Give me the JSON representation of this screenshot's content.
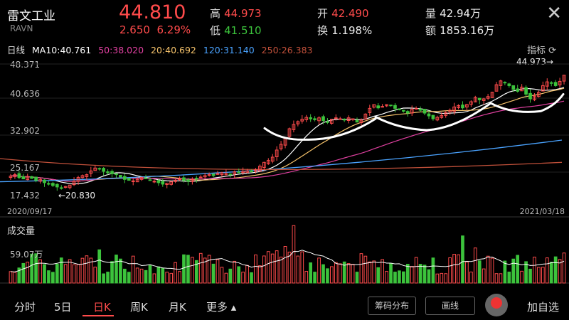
{
  "header": {
    "name": "雷文工业",
    "code": "RAVN",
    "price": "44.810",
    "change": "2.650",
    "change_pct": "6.29%",
    "high_label": "高",
    "high": "44.973",
    "low_label": "低",
    "low": "41.510",
    "open_label": "开",
    "open": "42.490",
    "turnover_label": "换",
    "turnover": "1.198%",
    "volume_label": "量",
    "volume": "42.94万",
    "amount_label": "额",
    "amount": "1853.16万",
    "close_glyph": "✕"
  },
  "ma": {
    "period": "日线",
    "ma10": "MA10:40.761",
    "ma50": "50:38.020",
    "ma20": "20:40.692",
    "ma120": "120:31.140",
    "ma250": "250:26.383",
    "indicator_btn": "指标 ⟳"
  },
  "colors": {
    "up": "#ff4b4b",
    "down": "#3cc33c",
    "ma10": "#ffffff",
    "ma20": "#f5c26b",
    "ma50": "#e040a0",
    "ma120": "#4aa3ff",
    "ma250": "#c0503a"
  },
  "chart_data": {
    "type": "candlestick",
    "y_ticks": [
      "48.371",
      "40.636",
      "32.902",
      "25.167",
      "17.432"
    ],
    "ylim": [
      17.432,
      48.371
    ],
    "start_date": "2020/09/17",
    "end_date": "2021/03/18",
    "high_annotation": "44.973→",
    "low_annotation": "←20.830",
    "approx_closes": [
      23.5,
      23.8,
      23.2,
      22.9,
      23.4,
      23.0,
      22.6,
      22.8,
      22.1,
      21.8,
      21.5,
      21.2,
      21.0,
      21.3,
      21.6,
      22.4,
      23.2,
      23.6,
      23.8,
      24.6,
      25.2,
      25.0,
      24.5,
      24.2,
      24.0,
      23.8,
      23.3,
      22.8,
      22.6,
      22.5,
      22.8,
      23.2,
      23.0,
      22.6,
      22.4,
      22.1,
      21.8,
      22.0,
      22.3,
      22.6,
      22.9,
      22.6,
      22.4,
      22.8,
      23.0,
      23.3,
      23.6,
      23.8,
      23.6,
      24.0,
      24.2,
      24.0,
      23.8,
      24.4,
      24.3,
      24.5,
      24.6,
      24.4,
      24.8,
      25.6,
      26.4,
      26.8,
      27.5,
      29.0,
      30.2,
      31.6,
      33.5,
      34.4,
      35.0,
      35.5,
      35.9,
      35.6,
      35.4,
      35.8,
      35.2,
      34.8,
      35.5,
      35.8,
      35.6,
      35.4,
      35.8,
      35.6,
      34.9,
      35.3,
      36.6,
      37.8,
      38.6,
      37.9,
      38.2,
      38.6,
      38.4,
      37.8,
      37.5,
      37.2,
      36.8,
      37.6,
      37.8,
      37.4,
      36.8,
      36.2,
      35.6,
      35.9,
      36.3,
      36.9,
      37.4,
      38.1,
      38.4,
      37.9,
      38.6,
      39.2,
      40.1,
      39.6,
      39.8,
      40.3,
      41.2,
      42.8,
      43.6,
      43.2,
      42.6,
      41.8,
      41.4,
      42.3,
      40.8,
      39.8,
      40.4,
      41.2,
      42.6,
      43.4,
      43.1,
      42.6,
      43.5,
      44.81
    ],
    "volume_title": "成交量",
    "volume_tick": "59.07万"
  },
  "bottom": {
    "tabs": [
      "分时",
      "5日",
      "日K",
      "周K",
      "月K",
      "更多 ▴"
    ],
    "active": "日K",
    "chip_btn": "筹码分布",
    "draw_btn": "画线",
    "add_btn": "加自选"
  }
}
